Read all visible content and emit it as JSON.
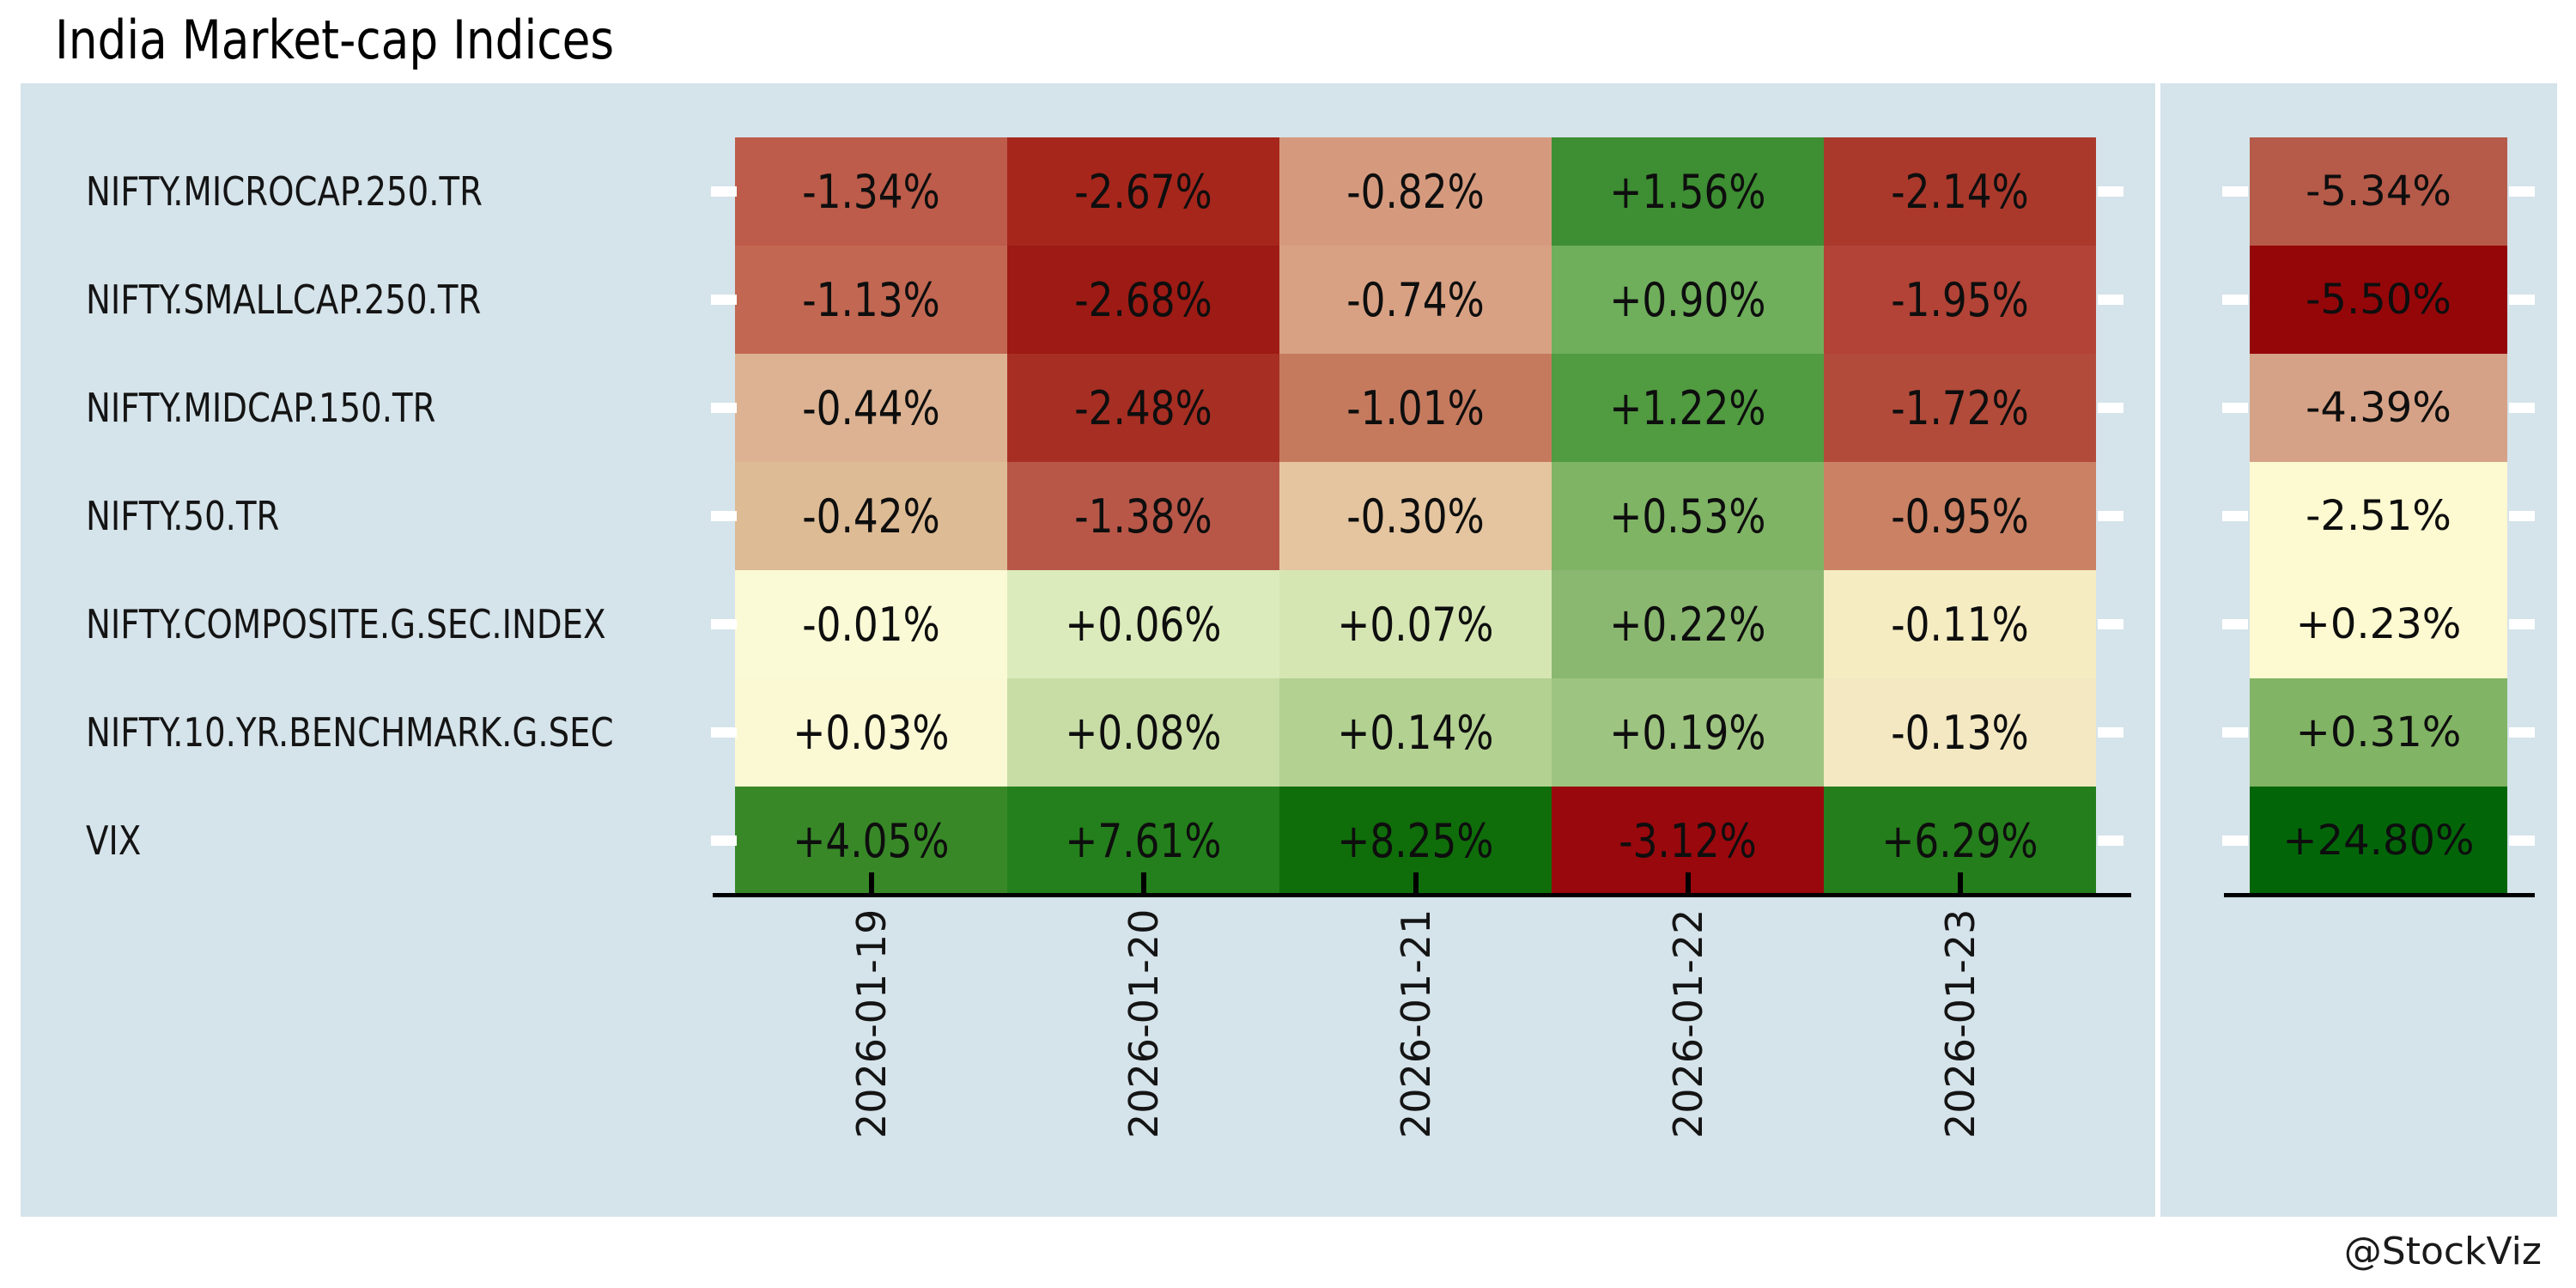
{
  "title": "India Market-cap Indices",
  "attribution": "@StockViz",
  "colors": {
    "panel_bg": "#d5e3ea",
    "axis_line": "#000000",
    "tick_white": "#ffffff",
    "text": "#111111"
  },
  "chart_data": {
    "type": "heatmap",
    "title": "India Market-cap Indices",
    "columns": [
      "2026-01-19",
      "2026-01-20",
      "2026-01-21",
      "2026-01-22",
      "2026-01-23"
    ],
    "legend_position": "none",
    "grid": false,
    "rows": [
      {
        "label": "NIFTY.MICROCAP.250.TR",
        "values": [
          "-1.34%",
          "-2.67%",
          "-0.82%",
          "+1.56%",
          "-2.14%"
        ],
        "colors": [
          "#bd5c4a",
          "#a6261c",
          "#d59a7e",
          "#3e8e33",
          "#aa392c"
        ],
        "total": "-5.34%",
        "total_color": "#b65a49"
      },
      {
        "label": "NIFTY.SMALLCAP.250.TR",
        "values": [
          "-1.13%",
          "-2.68%",
          "-0.74%",
          "+0.90%",
          "-1.95%"
        ],
        "colors": [
          "#c26752",
          "#9d1b14",
          "#d8a183",
          "#6fae5b",
          "#b24336"
        ],
        "total": "-5.50%",
        "total_color": "#950609"
      },
      {
        "label": "NIFTY.MIDCAP.150.TR",
        "values": [
          "-0.44%",
          "-2.48%",
          "-1.01%",
          "+1.22%",
          "-1.72%"
        ],
        "colors": [
          "#dcb292",
          "#a72e23",
          "#c57a5e",
          "#519b41",
          "#b34b3a"
        ],
        "total": "-4.39%",
        "total_color": "#d6a287"
      },
      {
        "label": "NIFTY.50.TR",
        "values": [
          "-0.42%",
          "-1.38%",
          "-0.30%",
          "+0.53%",
          "-0.95%"
        ],
        "colors": [
          "#ddbb95",
          "#b85748",
          "#e4c59f",
          "#7fb465",
          "#cb8164"
        ],
        "total": "-2.51%",
        "total_color": "#fdf9d0"
      },
      {
        "label": "NIFTY.COMPOSITE.G.SEC.INDEX",
        "values": [
          "-0.01%",
          "+0.06%",
          "+0.07%",
          "+0.22%",
          "-0.11%"
        ],
        "colors": [
          "#fbfad6",
          "#dcebbb",
          "#d6e6b3",
          "#8ab870",
          "#f5ecc2"
        ],
        "total": "+0.23%",
        "total_color": "#fdf9d0"
      },
      {
        "label": "NIFTY.10.YR.BENCHMARK.G.SEC",
        "values": [
          "+0.03%",
          "+0.08%",
          "+0.14%",
          "+0.19%",
          "-0.13%"
        ],
        "colors": [
          "#fbf9d4",
          "#c8dda6",
          "#b3d191",
          "#9ec481",
          "#f3e8c2"
        ],
        "total": "+0.31%",
        "total_color": "#81b465"
      },
      {
        "label": "VIX",
        "values": [
          "+4.05%",
          "+7.61%",
          "+8.25%",
          "-3.12%",
          "+6.29%"
        ],
        "colors": [
          "#388828",
          "#24801c",
          "#0f6e0a",
          "#99080d",
          "#257e1c"
        ],
        "total": "+24.80%",
        "total_color": "#026609"
      }
    ]
  }
}
